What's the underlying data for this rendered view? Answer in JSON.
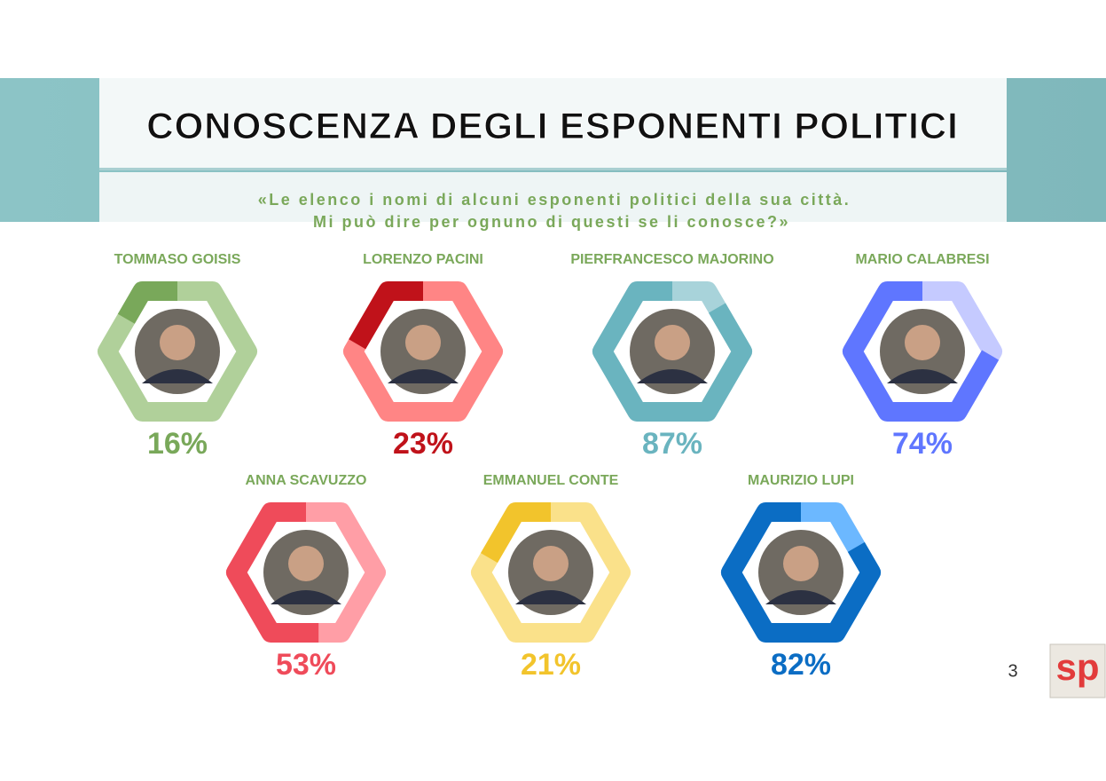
{
  "chart_data": {
    "type": "hexagon-ring",
    "title": "CONOSCENZA DEGLI ESPONENTI POLITICI",
    "subtitle": [
      "«Le elenco i nomi di alcuni esponenti politici della sua città.",
      "Mi può dire per ognuno di questi se li conosce?»"
    ],
    "categories": [
      "TOMMASO GOISIS",
      "LORENZO PACINI",
      "PIERFRANCESCO MAJORINO",
      "MARIO CALABRESI",
      "ANNA SCAVUZZO",
      "EMMANUEL CONTE",
      "MAURIZIO LUPI"
    ],
    "values": [
      16,
      23,
      87,
      74,
      53,
      21,
      82
    ],
    "value_labels": [
      "16%",
      "23%",
      "87%",
      "74%",
      "53%",
      "21%",
      "82%"
    ],
    "colors": [
      "#79a85a",
      "#c0121a",
      "#6ab4bf",
      "#5f76ff",
      "#ef4b5a",
      "#f2c42c",
      "#0b6dc4"
    ],
    "track_colors": [
      "#b0d09a",
      "#ff8585",
      "#a8d3da",
      "#c5caff",
      "#ff9ea6",
      "#fae18a",
      "#6cb8ff"
    ]
  },
  "page_number": "3",
  "logo": "sp"
}
